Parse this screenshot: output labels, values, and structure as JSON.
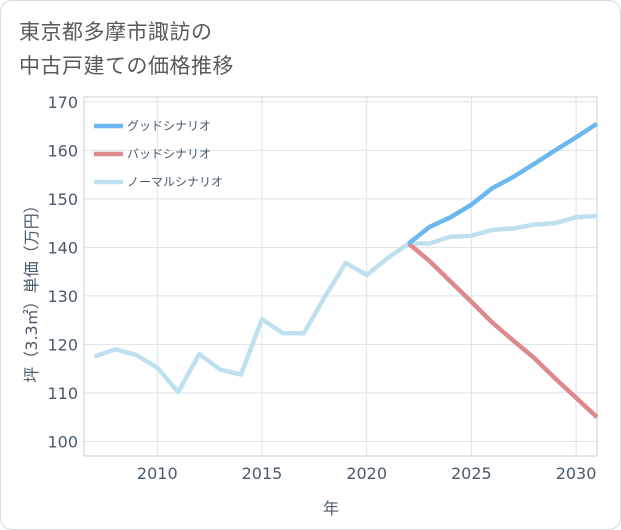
{
  "title_lines": [
    "東京都多摩市諏訪の",
    "中古戸建ての価格推移"
  ],
  "chart_data": {
    "type": "line",
    "title": "東京都多摩市諏訪の中古戸建ての価格推移",
    "xlabel": "年",
    "ylabel": "坪（3.3㎡）単価（万円）",
    "xlim": [
      2006.5,
      2031
    ],
    "ylim": [
      97,
      171
    ],
    "xticks": [
      2010,
      2015,
      2020,
      2025,
      2030
    ],
    "yticks": [
      100,
      110,
      120,
      130,
      140,
      150,
      160,
      170
    ],
    "grid": true,
    "legend_position": "top-left",
    "series": [
      {
        "name": "グッドシナリオ",
        "color": "#6cb8ee",
        "x": [
          2022,
          2023,
          2024,
          2025,
          2026,
          2027,
          2028,
          2029,
          2030,
          2031
        ],
        "y": [
          140.8,
          144.2,
          146.2,
          148.8,
          152.2,
          154.5,
          157.2,
          160.0,
          162.7,
          165.5
        ]
      },
      {
        "name": "バッドシナリオ",
        "color": "#dd8a8f",
        "x": [
          2022,
          2023,
          2024,
          2025,
          2026,
          2027,
          2028,
          2029,
          2030,
          2031
        ],
        "y": [
          140.8,
          137.2,
          133.0,
          128.8,
          124.5,
          120.8,
          117.2,
          113.0,
          109.0,
          105.0
        ]
      },
      {
        "name": "ノーマルシナリオ",
        "color": "#bfe1ef",
        "x": [
          2007,
          2008,
          2009,
          2010,
          2011,
          2012,
          2013,
          2014,
          2015,
          2016,
          2017,
          2018,
          2019,
          2020,
          2021,
          2022,
          2023,
          2024,
          2025,
          2026,
          2027,
          2028,
          2029,
          2030,
          2031
        ],
        "y": [
          117.5,
          119.0,
          117.8,
          115.2,
          110.2,
          118.0,
          114.8,
          113.8,
          125.2,
          122.3,
          122.3,
          129.8,
          136.8,
          134.3,
          137.8,
          140.8,
          140.8,
          142.2,
          142.4,
          143.6,
          143.9,
          144.7,
          145.0,
          146.2,
          146.5
        ]
      }
    ]
  }
}
